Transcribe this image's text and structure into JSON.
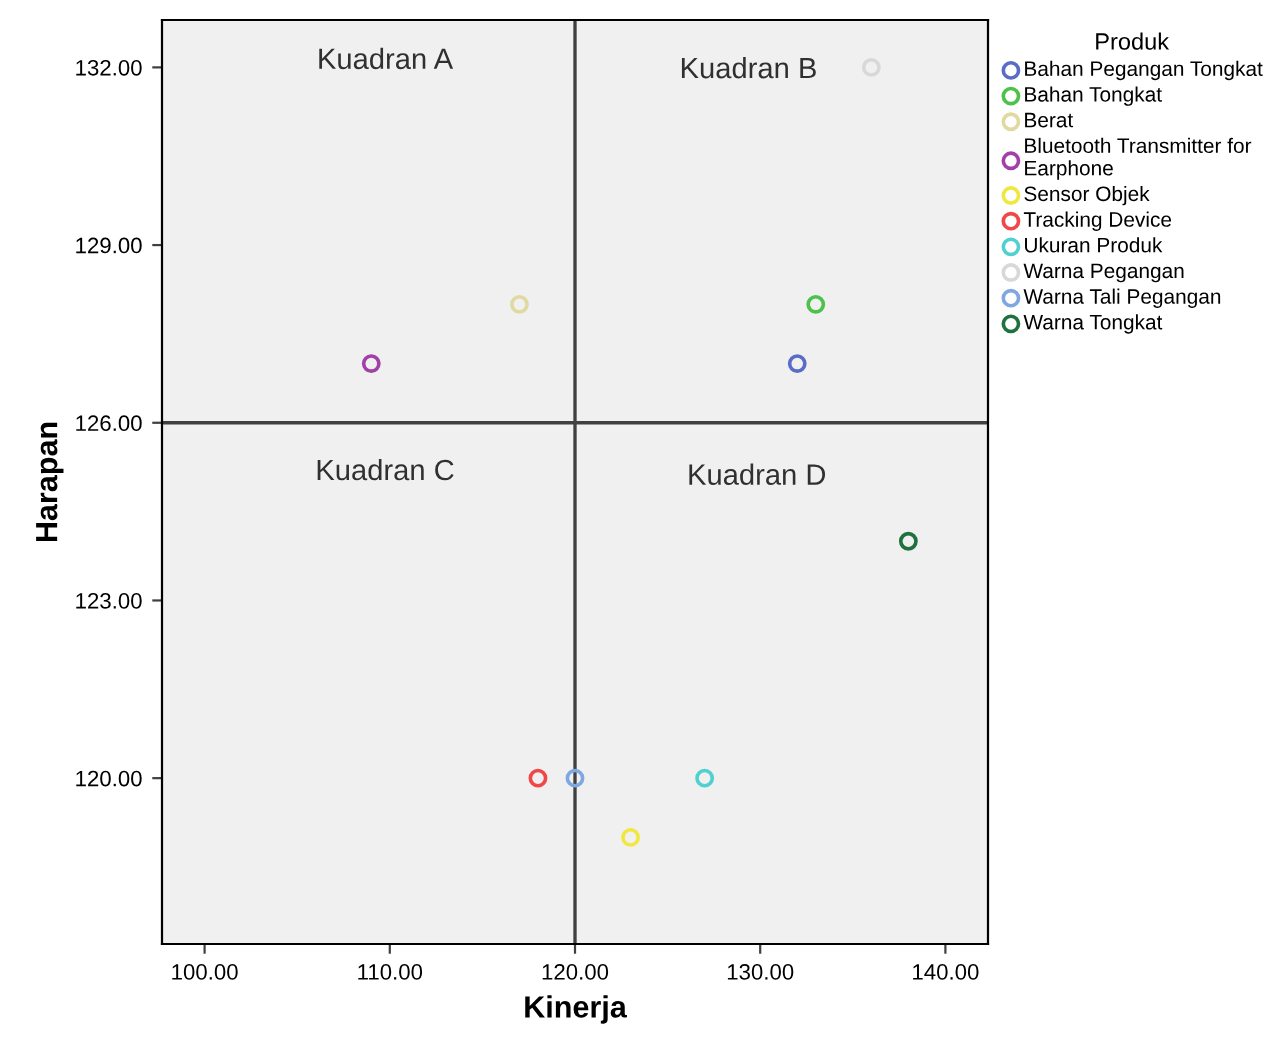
{
  "chart_data": {
    "type": "scatter",
    "xlabel": "Kinerja",
    "ylabel": "Harapan",
    "legend_title": "Produk",
    "legend": "right",
    "marker": "circle",
    "grid": false,
    "xlim": [
      97.7,
      142.3
    ],
    "xticks": [
      {
        "value": 100,
        "label": "100.00"
      },
      {
        "value": 110,
        "label": "110.00"
      },
      {
        "value": 120,
        "label": "120.00"
      },
      {
        "value": 130,
        "label": "130.00"
      },
      {
        "value": 140,
        "label": "140.00"
      }
    ],
    "ylim": [
      117.2,
      132.8
    ],
    "yticks": [
      {
        "value": 120,
        "label": "120.00"
      },
      {
        "value": 123,
        "label": "123.00"
      },
      {
        "value": 126,
        "label": "126.00"
      },
      {
        "value": 129,
        "label": "129.00"
      },
      {
        "value": 132,
        "label": "132.00"
      }
    ],
    "ref_lines": [
      {
        "axis": "x",
        "value": 120,
        "color": "#404040"
      },
      {
        "axis": "y",
        "value": 126,
        "color": "#404040"
      }
    ],
    "annotations": [
      "Kuadran A",
      "Kuadran B",
      "Kuadran C",
      "Kuadran D"
    ],
    "series": [
      {
        "name": "Bahan Pegangan Tongkat",
        "color": "#5b6bc8",
        "x": [
          132
        ],
        "values": [
          127
        ]
      },
      {
        "name": "Bahan Tongkat",
        "color": "#4cc24c",
        "x": [
          133
        ],
        "values": [
          128
        ]
      },
      {
        "name": "Berat",
        "color": "#e0d9a0",
        "x": [
          117
        ],
        "values": [
          128
        ]
      },
      {
        "name": "Bluetooth Transmitter for\nEarphone",
        "color": "#a040a8",
        "x": [
          109
        ],
        "values": [
          127
        ]
      },
      {
        "name": "Sensor Objek",
        "color": "#f0e840",
        "x": [
          123
        ],
        "values": [
          119
        ]
      },
      {
        "name": "Tracking Device",
        "color": "#f04848",
        "x": [
          118
        ],
        "values": [
          120
        ]
      },
      {
        "name": "Ukuran Produk",
        "color": "#50d0d0",
        "x": [
          127
        ],
        "values": [
          120
        ]
      },
      {
        "name": "Warna Pegangan",
        "color": "#d8d8d8",
        "x": [
          136
        ],
        "values": [
          132
        ]
      },
      {
        "name": "Warna Tali Pegangan",
        "color": "#80a8e0",
        "x": [
          120
        ],
        "values": [
          120
        ]
      },
      {
        "name": "Warna Tongkat",
        "color": "#207040",
        "x": [
          138
        ],
        "values": [
          124
        ]
      }
    ]
  }
}
